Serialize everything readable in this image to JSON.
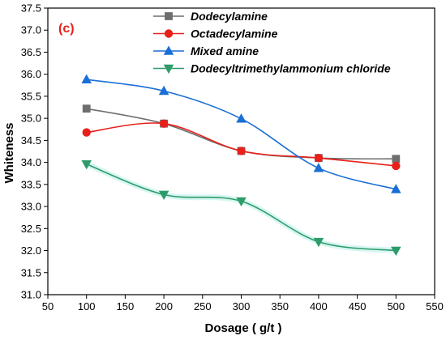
{
  "panel_label": "(c)",
  "colors": {
    "panel_label": "#e8201a"
  },
  "chart_data": {
    "type": "line",
    "title": "",
    "xlabel": "Dosage ( g/t )",
    "ylabel": "Whiteness",
    "xlim": [
      50,
      550
    ],
    "ylim": [
      31.0,
      37.5
    ],
    "xticks": [
      50,
      100,
      150,
      200,
      250,
      300,
      350,
      400,
      450,
      500,
      550
    ],
    "yticks": [
      31.0,
      31.5,
      32.0,
      32.5,
      33.0,
      33.5,
      34.0,
      34.5,
      35.0,
      35.5,
      36.0,
      36.5,
      37.0,
      37.5
    ],
    "x": [
      100,
      200,
      300,
      400,
      500
    ],
    "grid": false,
    "legend_position": "top",
    "series": [
      {
        "name": "Dodecylamine",
        "values": [
          35.22,
          34.88,
          34.26,
          34.1,
          34.08
        ],
        "color": "#6e6e6e",
        "marker": "square"
      },
      {
        "name": "Octadecylamine",
        "values": [
          34.68,
          34.88,
          34.26,
          34.1,
          33.92
        ],
        "color": "#e8201a",
        "marker": "circle"
      },
      {
        "name": "Mixed amine",
        "values": [
          35.88,
          35.62,
          34.99,
          33.87,
          33.39
        ],
        "color": "#1a6fd6",
        "marker": "triangle-up"
      },
      {
        "name": "Dodecyltrimethylammonium chloride",
        "values": [
          33.96,
          33.27,
          33.12,
          32.2,
          32.0
        ],
        "color": "#2e9c6a",
        "marker": "triangle-down"
      }
    ]
  }
}
